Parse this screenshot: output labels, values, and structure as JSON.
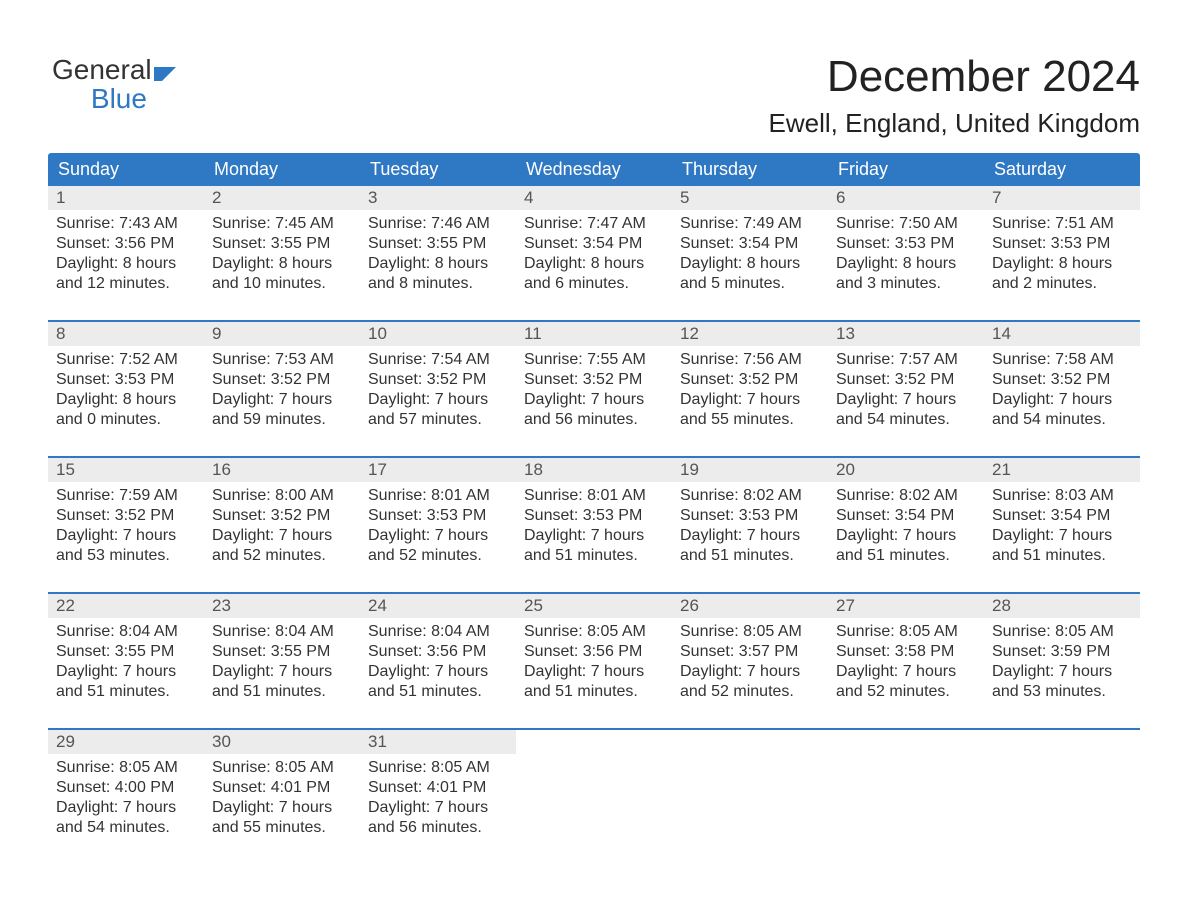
{
  "logo": {
    "line1": "General",
    "line2": "Blue"
  },
  "title": "December 2024",
  "subtitle": "Ewell, England, United Kingdom",
  "columns": [
    "Sunday",
    "Monday",
    "Tuesday",
    "Wednesday",
    "Thursday",
    "Friday",
    "Saturday"
  ],
  "styling": {
    "header_bg": "#2f78c4",
    "header_text": "#ffffff",
    "daynum_bg": "#ececec",
    "daynum_text": "#555555",
    "body_text": "#333333",
    "week_divider": "#2f78c4",
    "page_bg": "#ffffff",
    "title_fontsize": 44,
    "subtitle_fontsize": 26,
    "header_fontsize": 18,
    "cell_fontsize": 16
  },
  "weeks": [
    [
      {
        "n": "1",
        "sunrise": "Sunrise: 7:43 AM",
        "sunset": "Sunset: 3:56 PM",
        "d1": "Daylight: 8 hours",
        "d2": "and 12 minutes."
      },
      {
        "n": "2",
        "sunrise": "Sunrise: 7:45 AM",
        "sunset": "Sunset: 3:55 PM",
        "d1": "Daylight: 8 hours",
        "d2": "and 10 minutes."
      },
      {
        "n": "3",
        "sunrise": "Sunrise: 7:46 AM",
        "sunset": "Sunset: 3:55 PM",
        "d1": "Daylight: 8 hours",
        "d2": "and 8 minutes."
      },
      {
        "n": "4",
        "sunrise": "Sunrise: 7:47 AM",
        "sunset": "Sunset: 3:54 PM",
        "d1": "Daylight: 8 hours",
        "d2": "and 6 minutes."
      },
      {
        "n": "5",
        "sunrise": "Sunrise: 7:49 AM",
        "sunset": "Sunset: 3:54 PM",
        "d1": "Daylight: 8 hours",
        "d2": "and 5 minutes."
      },
      {
        "n": "6",
        "sunrise": "Sunrise: 7:50 AM",
        "sunset": "Sunset: 3:53 PM",
        "d1": "Daylight: 8 hours",
        "d2": "and 3 minutes."
      },
      {
        "n": "7",
        "sunrise": "Sunrise: 7:51 AM",
        "sunset": "Sunset: 3:53 PM",
        "d1": "Daylight: 8 hours",
        "d2": "and 2 minutes."
      }
    ],
    [
      {
        "n": "8",
        "sunrise": "Sunrise: 7:52 AM",
        "sunset": "Sunset: 3:53 PM",
        "d1": "Daylight: 8 hours",
        "d2": "and 0 minutes."
      },
      {
        "n": "9",
        "sunrise": "Sunrise: 7:53 AM",
        "sunset": "Sunset: 3:52 PM",
        "d1": "Daylight: 7 hours",
        "d2": "and 59 minutes."
      },
      {
        "n": "10",
        "sunrise": "Sunrise: 7:54 AM",
        "sunset": "Sunset: 3:52 PM",
        "d1": "Daylight: 7 hours",
        "d2": "and 57 minutes."
      },
      {
        "n": "11",
        "sunrise": "Sunrise: 7:55 AM",
        "sunset": "Sunset: 3:52 PM",
        "d1": "Daylight: 7 hours",
        "d2": "and 56 minutes."
      },
      {
        "n": "12",
        "sunrise": "Sunrise: 7:56 AM",
        "sunset": "Sunset: 3:52 PM",
        "d1": "Daylight: 7 hours",
        "d2": "and 55 minutes."
      },
      {
        "n": "13",
        "sunrise": "Sunrise: 7:57 AM",
        "sunset": "Sunset: 3:52 PM",
        "d1": "Daylight: 7 hours",
        "d2": "and 54 minutes."
      },
      {
        "n": "14",
        "sunrise": "Sunrise: 7:58 AM",
        "sunset": "Sunset: 3:52 PM",
        "d1": "Daylight: 7 hours",
        "d2": "and 54 minutes."
      }
    ],
    [
      {
        "n": "15",
        "sunrise": "Sunrise: 7:59 AM",
        "sunset": "Sunset: 3:52 PM",
        "d1": "Daylight: 7 hours",
        "d2": "and 53 minutes."
      },
      {
        "n": "16",
        "sunrise": "Sunrise: 8:00 AM",
        "sunset": "Sunset: 3:52 PM",
        "d1": "Daylight: 7 hours",
        "d2": "and 52 minutes."
      },
      {
        "n": "17",
        "sunrise": "Sunrise: 8:01 AM",
        "sunset": "Sunset: 3:53 PM",
        "d1": "Daylight: 7 hours",
        "d2": "and 52 minutes."
      },
      {
        "n": "18",
        "sunrise": "Sunrise: 8:01 AM",
        "sunset": "Sunset: 3:53 PM",
        "d1": "Daylight: 7 hours",
        "d2": "and 51 minutes."
      },
      {
        "n": "19",
        "sunrise": "Sunrise: 8:02 AM",
        "sunset": "Sunset: 3:53 PM",
        "d1": "Daylight: 7 hours",
        "d2": "and 51 minutes."
      },
      {
        "n": "20",
        "sunrise": "Sunrise: 8:02 AM",
        "sunset": "Sunset: 3:54 PM",
        "d1": "Daylight: 7 hours",
        "d2": "and 51 minutes."
      },
      {
        "n": "21",
        "sunrise": "Sunrise: 8:03 AM",
        "sunset": "Sunset: 3:54 PM",
        "d1": "Daylight: 7 hours",
        "d2": "and 51 minutes."
      }
    ],
    [
      {
        "n": "22",
        "sunrise": "Sunrise: 8:04 AM",
        "sunset": "Sunset: 3:55 PM",
        "d1": "Daylight: 7 hours",
        "d2": "and 51 minutes."
      },
      {
        "n": "23",
        "sunrise": "Sunrise: 8:04 AM",
        "sunset": "Sunset: 3:55 PM",
        "d1": "Daylight: 7 hours",
        "d2": "and 51 minutes."
      },
      {
        "n": "24",
        "sunrise": "Sunrise: 8:04 AM",
        "sunset": "Sunset: 3:56 PM",
        "d1": "Daylight: 7 hours",
        "d2": "and 51 minutes."
      },
      {
        "n": "25",
        "sunrise": "Sunrise: 8:05 AM",
        "sunset": "Sunset: 3:56 PM",
        "d1": "Daylight: 7 hours",
        "d2": "and 51 minutes."
      },
      {
        "n": "26",
        "sunrise": "Sunrise: 8:05 AM",
        "sunset": "Sunset: 3:57 PM",
        "d1": "Daylight: 7 hours",
        "d2": "and 52 minutes."
      },
      {
        "n": "27",
        "sunrise": "Sunrise: 8:05 AM",
        "sunset": "Sunset: 3:58 PM",
        "d1": "Daylight: 7 hours",
        "d2": "and 52 minutes."
      },
      {
        "n": "28",
        "sunrise": "Sunrise: 8:05 AM",
        "sunset": "Sunset: 3:59 PM",
        "d1": "Daylight: 7 hours",
        "d2": "and 53 minutes."
      }
    ],
    [
      {
        "n": "29",
        "sunrise": "Sunrise: 8:05 AM",
        "sunset": "Sunset: 4:00 PM",
        "d1": "Daylight: 7 hours",
        "d2": "and 54 minutes."
      },
      {
        "n": "30",
        "sunrise": "Sunrise: 8:05 AM",
        "sunset": "Sunset: 4:01 PM",
        "d1": "Daylight: 7 hours",
        "d2": "and 55 minutes."
      },
      {
        "n": "31",
        "sunrise": "Sunrise: 8:05 AM",
        "sunset": "Sunset: 4:01 PM",
        "d1": "Daylight: 7 hours",
        "d2": "and 56 minutes."
      },
      null,
      null,
      null,
      null
    ]
  ]
}
